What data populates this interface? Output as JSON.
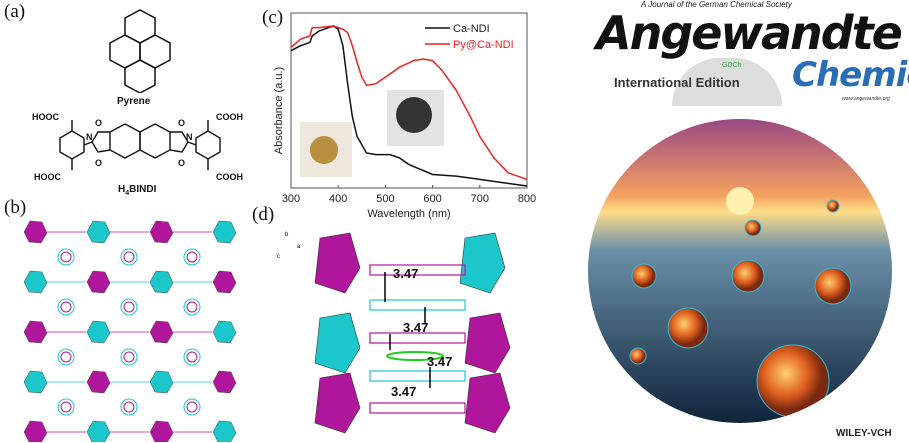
{
  "panels": {
    "a": "(a)",
    "b": "(b)",
    "c": "(c)",
    "d": "(d)"
  },
  "molecules": {
    "pyrene": "Pyrene",
    "bindi": "H4BINDI",
    "bindi_main": "H",
    "bindi_sub": "4",
    "bindi_rest": "BINDI",
    "cooh_labels": [
      "HOOC",
      "HOOC",
      "COOH",
      "COOH"
    ],
    "o_label": "O",
    "n_label": "N"
  },
  "distance_labels": [
    "3.47",
    "3.47",
    "3.47",
    "3.47"
  ],
  "axis_triad": {
    "b": "b",
    "a": "a",
    "c": "c"
  },
  "chart_data": {
    "type": "line",
    "xlabel": "Wavelength (nm)",
    "ylabel": "Absorbance (a.u.)",
    "xlim": [
      300,
      800
    ],
    "ylim": [
      0,
      1
    ],
    "xticks": [
      "300",
      "400",
      "500",
      "600",
      "700",
      "800"
    ],
    "legend_position": "top-right",
    "series": [
      {
        "name": "Ca-NDI",
        "color": "#111111",
        "x": [
          300,
          320,
          340,
          345,
          360,
          390,
          400,
          410,
          420,
          430,
          440,
          460,
          480,
          510,
          530,
          550,
          600,
          650,
          700,
          750,
          800
        ],
        "y": [
          0.82,
          0.85,
          0.87,
          0.91,
          0.94,
          0.97,
          0.95,
          0.85,
          0.62,
          0.42,
          0.3,
          0.2,
          0.19,
          0.19,
          0.17,
          0.13,
          0.07,
          0.06,
          0.04,
          0.02,
          0.0
        ]
      },
      {
        "name": "Py@Ca-NDI",
        "color": "#ee2222",
        "x": [
          300,
          320,
          340,
          345,
          360,
          390,
          410,
          420,
          430,
          440,
          450,
          460,
          480,
          500,
          530,
          560,
          580,
          600,
          620,
          650,
          680,
          700,
          730,
          760,
          800
        ],
        "y": [
          0.84,
          0.89,
          0.91,
          0.96,
          0.96,
          0.97,
          0.95,
          0.93,
          0.85,
          0.75,
          0.66,
          0.61,
          0.62,
          0.66,
          0.72,
          0.76,
          0.77,
          0.76,
          0.7,
          0.58,
          0.42,
          0.3,
          0.17,
          0.08,
          0.04
        ]
      }
    ]
  },
  "cover": {
    "tagline": "A Journal of the German Chemical Society",
    "title1": "Angewandte",
    "title2": "Chemie",
    "edition": "International Edition",
    "gdch": "GDCh",
    "url": "www.angewandte.org",
    "publisher": "WILEY-VCH",
    "colors": {
      "blue": "#2a6db5",
      "gdch": "#3a9a3a"
    }
  },
  "colors": {
    "magenta": "#b0169b",
    "cyan": "#1cc7cc",
    "green": "#22cc22"
  }
}
